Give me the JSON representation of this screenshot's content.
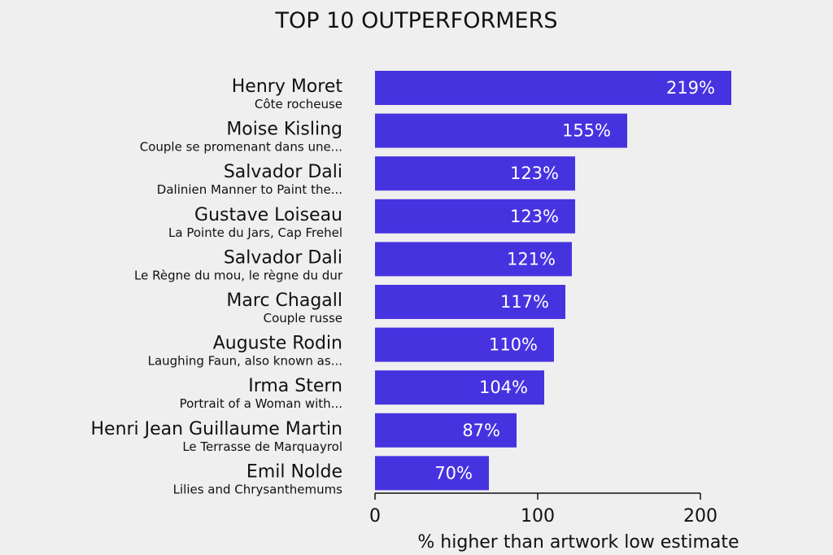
{
  "colors": {
    "bar": "#4633e0",
    "background": "#efefef",
    "axis": "#111111",
    "bar_text": "#ffffff"
  },
  "chart_data": {
    "type": "bar",
    "orientation": "horizontal",
    "title": "TOP 10 OUTPERFORMERS",
    "xlabel": "% higher than artwork low estimate",
    "ylabel": "",
    "xlim": [
      0,
      280
    ],
    "xticks": [
      0,
      100,
      200
    ],
    "grid": false,
    "categories": [
      {
        "artist": "Henry Moret",
        "work": "Côte rocheuse"
      },
      {
        "artist": "Moise Kisling",
        "work": "Couple se promenant dans une..."
      },
      {
        "artist": "Salvador Dali",
        "work": "Dalinien Manner to Paint the..."
      },
      {
        "artist": "Gustave Loiseau",
        "work": "La Pointe du Jars, Cap Frehel"
      },
      {
        "artist": "Salvador Dali",
        "work": "Le Règne du mou, le règne du dur"
      },
      {
        "artist": "Marc Chagall",
        "work": "Couple russe"
      },
      {
        "artist": "Auguste Rodin",
        "work": "Laughing Faun, also known as..."
      },
      {
        "artist": "Irma Stern",
        "work": "Portrait of a Woman with..."
      },
      {
        "artist": "Henri Jean Guillaume Martin",
        "work": "Le Terrasse de Marquayrol"
      },
      {
        "artist": "Emil Nolde",
        "work": "Lilies and Chrysanthemums"
      }
    ],
    "values": [
      219,
      155,
      123,
      123,
      121,
      117,
      110,
      104,
      87,
      70
    ],
    "value_labels": [
      "219%",
      "155%",
      "123%",
      "123%",
      "121%",
      "117%",
      "110%",
      "104%",
      "87%",
      "70%"
    ]
  }
}
